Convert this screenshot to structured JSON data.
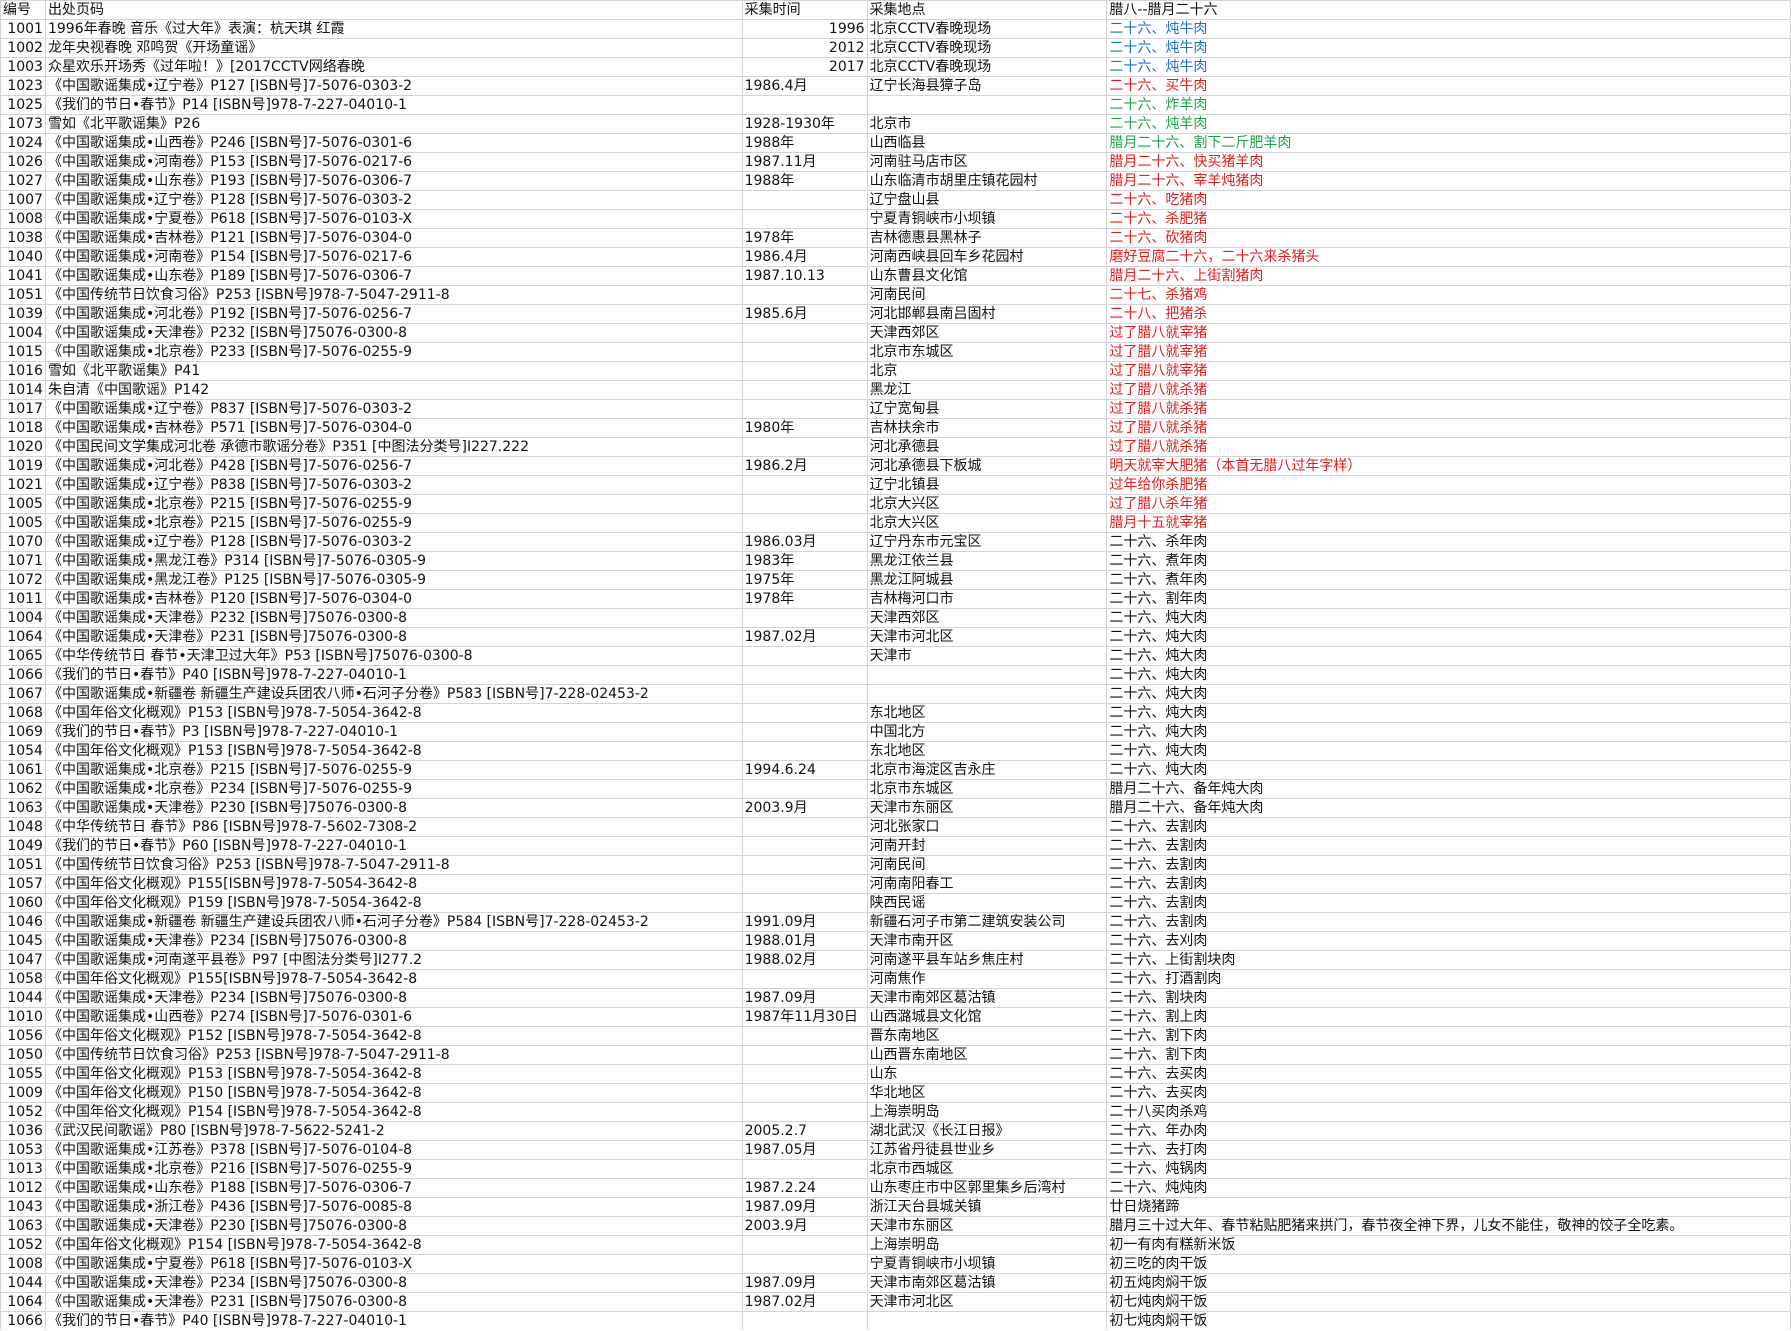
{
  "headers": [
    "编号",
    "出处页码",
    "采集时间",
    "采集地点",
    "腊八--腊月二十六"
  ],
  "colors": {
    "blue": "#1f6fd0",
    "green": "#1ea24a",
    "red": "#e01e1e",
    "black": "#111111"
  },
  "rows": [
    {
      "id": "1001",
      "source": "1996年春晚 音乐《过大年》表演：杭天琪 红霞",
      "time": "1996",
      "place": "北京CCTV春晚现场",
      "custom": "二十六、炖牛肉",
      "color": "blue"
    },
    {
      "id": "1002",
      "source": "龙年央视春晚 邓鸣贺《开场童谣》",
      "time": "2012",
      "place": "北京CCTV春晚现场",
      "custom": "二十六、炖牛肉",
      "color": "blue"
    },
    {
      "id": "1003",
      "source": "众星欢乐开场秀《过年啦！》[2017CCTV网络春晚",
      "time": "2017",
      "place": "北京CCTV春晚现场",
      "custom": "二十六、炖牛肉",
      "color": "blue"
    },
    {
      "id": "1023",
      "source": "《中国歌谣集成•辽宁卷》P127 [ISBN号]7-5076-0303-2",
      "time": "1986.4月",
      "place": "辽宁长海县獐子岛",
      "custom": "二十六、买牛肉",
      "color": "red"
    },
    {
      "id": "1025",
      "source": "《我们的节日•春节》P14 [ISBN号]978-7-227-04010-1",
      "time": "",
      "place": "",
      "custom": "二十六、炸羊肉",
      "color": "green"
    },
    {
      "id": "1073",
      "source": "雪如《北平歌谣集》P26",
      "time": "1928-1930年",
      "place": "北京市",
      "custom": "二十六、炖羊肉",
      "color": "green"
    },
    {
      "id": "1024",
      "source": "《中国歌谣集成•山西卷》P246 [ISBN号]7-5076-0301-6",
      "time": "1988年",
      "place": "山西临县",
      "custom": "腊月二十六、割下二斤肥羊肉",
      "color": "green"
    },
    {
      "id": "1026",
      "source": "《中国歌谣集成•河南卷》P153 [ISBN号]7-5076-0217-6",
      "time": "1987.11月",
      "place": "河南驻马店市区",
      "custom": "腊月二十六、快买猪羊肉",
      "color": "red"
    },
    {
      "id": "1027",
      "source": "《中国歌谣集成•山东卷》P193 [ISBN号]7-5076-0306-7",
      "time": "1988年",
      "place": "山东临清市胡里庄镇花园村",
      "custom": "腊月二十六、宰羊炖猪肉",
      "color": "red"
    },
    {
      "id": "1007",
      "source": "《中国歌谣集成•辽宁卷》P128 [ISBN号]7-5076-0303-2",
      "time": "",
      "place": "辽宁盘山县",
      "custom": "二十六、吃猪肉",
      "color": "red"
    },
    {
      "id": "1008",
      "source": "《中国歌谣集成•宁夏卷》P618 [ISBN号]7-5076-0103-X",
      "time": "",
      "place": "宁夏青铜峡市小坝镇",
      "custom": "二十六、杀肥猪",
      "color": "red"
    },
    {
      "id": "1038",
      "source": "《中国歌谣集成•吉林卷》P121 [ISBN号]7-5076-0304-0",
      "time": "1978年",
      "place": "吉林德惠县黑林子",
      "custom": "二十六、砍猪肉",
      "color": "red"
    },
    {
      "id": "1040",
      "source": "《中国歌谣集成•河南卷》P154 [ISBN号]7-5076-0217-6",
      "time": "1986.4月",
      "place": "河南西峡县回车乡花园村",
      "custom": "磨好豆腐二十六，二十六来杀猪头",
      "color": "red"
    },
    {
      "id": "1041",
      "source": "《中国歌谣集成•山东卷》P189 [ISBN号]7-5076-0306-7",
      "time": "1987.10.13",
      "place": "山东曹县文化馆",
      "custom": "腊月二十六、上街割猪肉",
      "color": "red"
    },
    {
      "id": "1051",
      "source": "《中国传统节日饮食习俗》P253 [ISBN号]978-7-5047-2911-8",
      "time": "",
      "place": "河南民间",
      "custom": "二十七、杀猪鸡",
      "color": "red"
    },
    {
      "id": "1039",
      "source": "《中国歌谣集成•河北卷》P192 [ISBN号]7-5076-0256-7",
      "time": "1985.6月",
      "place": "河北邯郸县南吕固村",
      "custom": "二十八、把猪杀",
      "color": "red"
    },
    {
      "id": "1004",
      "source": "《中国歌谣集成•天津卷》P232 [ISBN号]75076-0300-8",
      "time": "",
      "place": "天津西郊区",
      "custom": "过了腊八就宰猪",
      "color": "red"
    },
    {
      "id": "1015",
      "source": "《中国歌谣集成•北京卷》P233 [ISBN号]7-5076-0255-9",
      "time": "",
      "place": "北京市东城区",
      "custom": "过了腊八就宰猪",
      "color": "red"
    },
    {
      "id": "1016",
      "source": "雪如《北平歌谣集》P41",
      "time": "",
      "place": "北京",
      "custom": "过了腊八就宰猪",
      "color": "red"
    },
    {
      "id": "1014",
      "source": "朱自清《中国歌谣》P142",
      "time": "",
      "place": "黑龙江",
      "custom": "过了腊八就杀猪",
      "color": "red"
    },
    {
      "id": "1017",
      "source": "《中国歌谣集成•辽宁卷》P837 [ISBN号]7-5076-0303-2",
      "time": "",
      "place": "辽宁宽甸县",
      "custom": "过了腊八就杀猪",
      "color": "red"
    },
    {
      "id": "1018",
      "source": "《中国歌谣集成•吉林卷》P571 [ISBN号]7-5076-0304-0",
      "time": "1980年",
      "place": "吉林扶余市",
      "custom": "过了腊八就杀猪",
      "color": "red"
    },
    {
      "id": "1020",
      "source": "《中国民间文学集成河北卷 承德市歌谣分卷》P351 [中图法分类号]I227.222",
      "time": "",
      "place": "河北承德县",
      "custom": "过了腊八就杀猪",
      "color": "red"
    },
    {
      "id": "1019",
      "source": "《中国歌谣集成•河北卷》P428 [ISBN号]7-5076-0256-7",
      "time": "1986.2月",
      "place": "河北承德县下板城",
      "custom": "明天就宰大肥猪（本首无腊八过年字样）",
      "color": "red"
    },
    {
      "id": "1021",
      "source": "《中国歌谣集成•辽宁卷》P838 [ISBN号]7-5076-0303-2",
      "time": "",
      "place": "辽宁北镇县",
      "custom": "过年给你杀肥猪",
      "color": "red"
    },
    {
      "id": "1005",
      "source": "《中国歌谣集成•北京卷》P215 [ISBN号]7-5076-0255-9",
      "time": "",
      "place": "北京大兴区",
      "custom": "过了腊八杀年猪",
      "color": "red"
    },
    {
      "id": "1005",
      "source": "《中国歌谣集成•北京卷》P215 [ISBN号]7-5076-0255-9",
      "time": "",
      "place": "北京大兴区",
      "custom": "腊月十五就宰猪",
      "color": "red"
    },
    {
      "id": "1070",
      "source": "《中国歌谣集成•辽宁卷》P128 [ISBN号]7-5076-0303-2",
      "time": "1986.03月",
      "place": "辽宁丹东市元宝区",
      "custom": "二十六、杀年肉",
      "color": "black"
    },
    {
      "id": "1071",
      "source": "《中国歌谣集成•黑龙江卷》P314 [ISBN号]7-5076-0305-9",
      "time": "1983年",
      "place": "黑龙江依兰县",
      "custom": "二十六、煮年肉",
      "color": "black"
    },
    {
      "id": "1072",
      "source": "《中国歌谣集成•黑龙江卷》P125 [ISBN号]7-5076-0305-9",
      "time": "1975年",
      "place": "黑龙江阿城县",
      "custom": "二十六、煮年肉",
      "color": "black"
    },
    {
      "id": "1011",
      "source": "《中国歌谣集成•吉林卷》P120 [ISBN号]7-5076-0304-0",
      "time": "1978年",
      "place": "吉林梅河口市",
      "custom": "二十六、割年肉",
      "color": "black"
    },
    {
      "id": "1004",
      "source": "《中国歌谣集成•天津卷》P232 [ISBN号]75076-0300-8",
      "time": "",
      "place": "天津西郊区",
      "custom": "二十六、炖大肉",
      "color": "black"
    },
    {
      "id": "1064",
      "source": "《中国歌谣集成•天津卷》P231 [ISBN号]75076-0300-8",
      "time": "1987.02月",
      "place": "天津市河北区",
      "custom": "二十六、炖大肉",
      "color": "black"
    },
    {
      "id": "1065",
      "source": "《中华传统节日 春节•天津卫过大年》P53 [ISBN号]75076-0300-8",
      "time": "",
      "place": "天津市",
      "custom": "二十六、炖大肉",
      "color": "black"
    },
    {
      "id": "1066",
      "source": "《我们的节日•春节》P40 [ISBN号]978-7-227-04010-1",
      "time": "",
      "place": "",
      "custom": "二十六、炖大肉",
      "color": "black"
    },
    {
      "id": "1067",
      "source": "《中国歌谣集成•新疆卷 新疆生产建设兵团农八师•石河子分卷》P583 [ISBN号]7-228-02453-2",
      "time": "",
      "place": "",
      "custom": "二十六、炖大肉",
      "color": "black"
    },
    {
      "id": "1068",
      "source": "《中国年俗文化概观》P153 [ISBN号]978-7-5054-3642-8",
      "time": "",
      "place": "东北地区",
      "custom": "二十六、炖大肉",
      "color": "black"
    },
    {
      "id": "1069",
      "source": "《我们的节日•春节》P3 [ISBN号]978-7-227-04010-1",
      "time": "",
      "place": "中国北方",
      "custom": "二十六、炖大肉",
      "color": "black"
    },
    {
      "id": "1054",
      "source": "《中国年俗文化概观》P153 [ISBN号]978-7-5054-3642-8",
      "time": "",
      "place": "东北地区",
      "custom": "二十六、炖大肉",
      "color": "black"
    },
    {
      "id": "1061",
      "source": "《中国歌谣集成•北京卷》P215 [ISBN号]7-5076-0255-9",
      "time": "1994.6.24",
      "place": "北京市海淀区吉永庄",
      "custom": "二十六、炖大肉",
      "color": "black"
    },
    {
      "id": "1062",
      "source": "《中国歌谣集成•北京卷》P234 [ISBN号]7-5076-0255-9",
      "time": "",
      "place": "北京市东城区",
      "custom": "腊月二十六、备年炖大肉",
      "color": "black"
    },
    {
      "id": "1063",
      "source": "《中国歌谣集成•天津卷》P230 [ISBN号]75076-0300-8",
      "time": "2003.9月",
      "place": "天津市东丽区",
      "custom": "腊月二十六、备年炖大肉",
      "color": "black"
    },
    {
      "id": "1048",
      "source": "《中华传统节日 春节》P86 [ISBN号]978-7-5602-7308-2",
      "time": "",
      "place": "河北张家口",
      "custom": "二十六、去割肉",
      "color": "black"
    },
    {
      "id": "1049",
      "source": "《我们的节日•春节》P60 [ISBN号]978-7-227-04010-1",
      "time": "",
      "place": "河南开封",
      "custom": "二十六、去割肉",
      "color": "black"
    },
    {
      "id": "1051",
      "source": "《中国传统节日饮食习俗》P253 [ISBN号]978-7-5047-2911-8",
      "time": "",
      "place": "河南民间",
      "custom": "二十六、去割肉",
      "color": "black"
    },
    {
      "id": "1057",
      "source": "《中国年俗文化概观》P155[ISBN号]978-7-5054-3642-8",
      "time": "",
      "place": "河南南阳春工",
      "custom": "二十六、去割肉",
      "color": "black"
    },
    {
      "id": "1060",
      "source": "《中国年俗文化概观》P159 [ISBN号]978-7-5054-3642-8",
      "time": "",
      "place": "陕西民谣",
      "custom": "二十六、去割肉",
      "color": "black"
    },
    {
      "id": "1046",
      "source": "《中国歌谣集成•新疆卷 新疆生产建设兵团农八师•石河子分卷》P584 [ISBN号]7-228-02453-2",
      "time": "1991.09月",
      "place": "新疆石河子市第二建筑安装公司",
      "custom": "二十六、去割肉",
      "color": "black"
    },
    {
      "id": "1045",
      "source": "《中国歌谣集成•天津卷》P234 [ISBN号]75076-0300-8",
      "time": "1988.01月",
      "place": "天津市南开区",
      "custom": "二十六、去刈肉",
      "color": "black"
    },
    {
      "id": "1047",
      "source": "《中国歌谣集成•河南遂平县卷》P97 [中图法分类号]I277.2",
      "time": "1988.02月",
      "place": "河南遂平县车站乡焦庄村",
      "custom": "二十六、上街割块肉",
      "color": "black"
    },
    {
      "id": "1058",
      "source": "《中国年俗文化概观》P155[ISBN号]978-7-5054-3642-8",
      "time": "",
      "place": "河南焦作",
      "custom": "二十六、打酒割肉",
      "color": "black"
    },
    {
      "id": "1044",
      "source": "《中国歌谣集成•天津卷》P234 [ISBN号]75076-0300-8",
      "time": "1987.09月",
      "place": "天津市南郊区葛沽镇",
      "custom": "二十六、割块肉",
      "color": "black"
    },
    {
      "id": "1010",
      "source": "《中国歌谣集成•山西卷》P274 [ISBN号]7-5076-0301-6",
      "time": "1987年11月30日",
      "place": "山西潞城县文化馆",
      "custom": "二十六、割上肉",
      "color": "black"
    },
    {
      "id": "1056",
      "source": "《中国年俗文化概观》P152 [ISBN号]978-7-5054-3642-8",
      "time": "",
      "place": "晋东南地区",
      "custom": "二十六、割下肉",
      "color": "black"
    },
    {
      "id": "1050",
      "source": "《中国传统节日饮食习俗》P253 [ISBN号]978-7-5047-2911-8",
      "time": "",
      "place": "山西晋东南地区",
      "custom": "二十六、割下肉",
      "color": "black"
    },
    {
      "id": "1055",
      "source": "《中国年俗文化概观》P153 [ISBN号]978-7-5054-3642-8",
      "time": "",
      "place": "山东",
      "custom": "二十六、去买肉",
      "color": "black"
    },
    {
      "id": "1009",
      "source": "《中国年俗文化概观》P150 [ISBN号]978-7-5054-3642-8",
      "time": "",
      "place": "华北地区",
      "custom": "二十六、去买肉",
      "color": "black"
    },
    {
      "id": "1052",
      "source": "《中国年俗文化概观》P154 [ISBN号]978-7-5054-3642-8",
      "time": "",
      "place": "上海崇明岛",
      "custom": "二十八买肉杀鸡",
      "color": "black"
    },
    {
      "id": "1036",
      "source": "《武汉民间歌谣》P80 [ISBN号]978-7-5622-5241-2",
      "time": "2005.2.7",
      "place": "湖北武汉《长江日报》",
      "custom": "二十六、年办肉",
      "color": "black"
    },
    {
      "id": "1053",
      "source": "《中国歌谣集成•江苏卷》P378 [ISBN号]7-5076-0104-8",
      "time": "1987.05月",
      "place": "江苏省丹徒县世业乡",
      "custom": "二十六、去打肉",
      "color": "black"
    },
    {
      "id": "1013",
      "source": "《中国歌谣集成•北京卷》P216 [ISBN号]7-5076-0255-9",
      "time": "",
      "place": "北京市西城区",
      "custom": "二十六、炖锅肉",
      "color": "black"
    },
    {
      "id": "1012",
      "source": "《中国歌谣集成•山东卷》P188 [ISBN号]7-5076-0306-7",
      "time": "1987.2.24",
      "place": "山东枣庄市中区郭里集乡后湾村",
      "custom": "二十六、炖炖肉",
      "color": "black"
    },
    {
      "id": "1043",
      "source": "《中国歌谣集成•浙江卷》P436 [ISBN号]7-5076-0085-8",
      "time": "1987.09月",
      "place": "浙江天台县城关镇",
      "custom": "廿日烧猪蹄",
      "color": "black"
    },
    {
      "id": "1063",
      "source": "《中国歌谣集成•天津卷》P230 [ISBN号]75076-0300-8",
      "time": "2003.9月",
      "place": "天津市东丽区",
      "custom": "腊月三十过大年、春节粘贴肥猪来拱门，春节夜全神下界，儿女不能住，敬神的饺子全吃素。",
      "color": "black"
    },
    {
      "id": "1052",
      "source": "《中国年俗文化概观》P154 [ISBN号]978-7-5054-3642-8",
      "time": "",
      "place": "上海崇明岛",
      "custom": "初一有肉有糕新米饭",
      "color": "black"
    },
    {
      "id": "1008",
      "source": "《中国歌谣集成•宁夏卷》P618 [ISBN号]7-5076-0103-X",
      "time": "",
      "place": "宁夏青铜峡市小坝镇",
      "custom": "初三吃的肉干饭",
      "color": "black"
    },
    {
      "id": "1044",
      "source": "《中国歌谣集成•天津卷》P234 [ISBN号]75076-0300-8",
      "time": "1987.09月",
      "place": "天津市南郊区葛沽镇",
      "custom": "初五炖肉焖干饭",
      "color": "black"
    },
    {
      "id": "1064",
      "source": "《中国歌谣集成•天津卷》P231 [ISBN号]75076-0300-8",
      "time": "1987.02月",
      "place": "天津市河北区",
      "custom": "初七炖肉焖干饭",
      "color": "black"
    },
    {
      "id": "1066",
      "source": "《我们的节日•春节》P40 [ISBN号]978-7-227-04010-1",
      "time": "",
      "place": "",
      "custom": "初七炖肉焖干饭",
      "color": "black"
    }
  ]
}
